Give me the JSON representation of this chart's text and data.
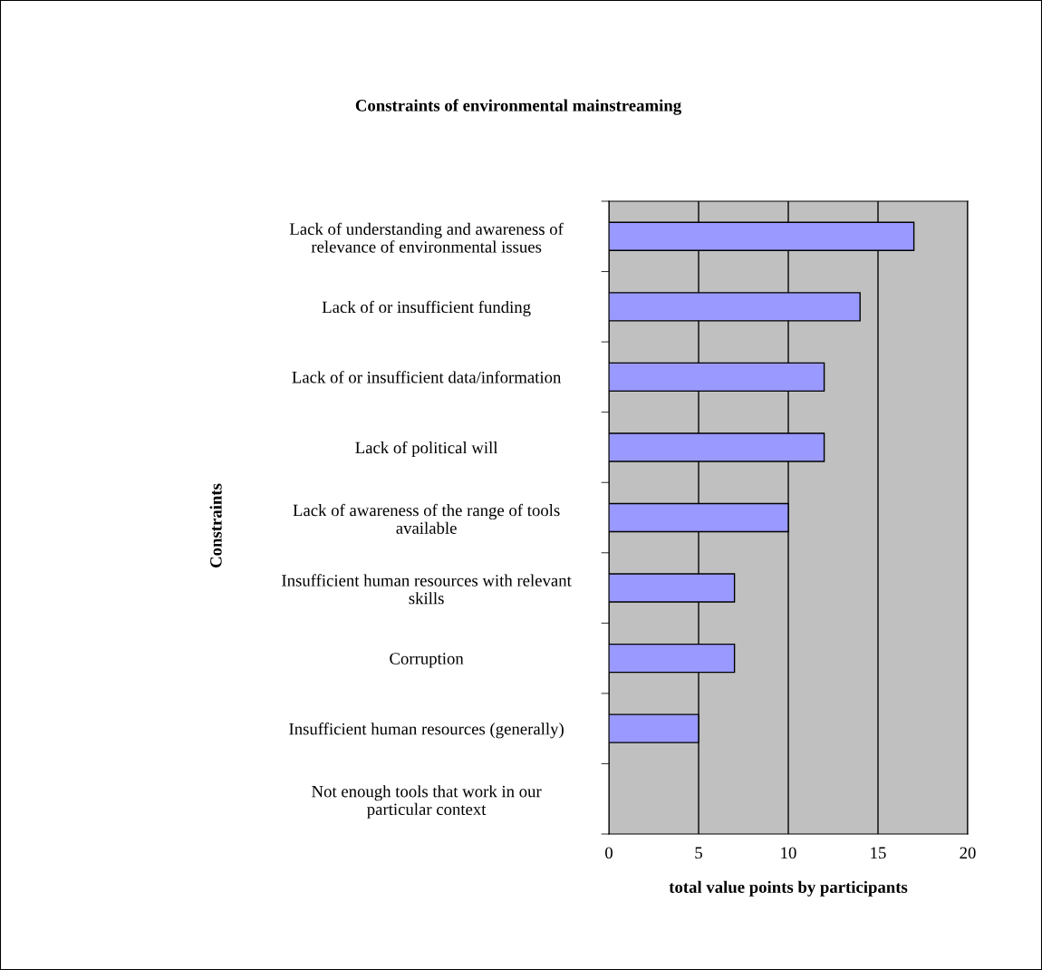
{
  "chart_data": {
    "type": "bar",
    "orientation": "horizontal",
    "title": "Constraints of environmental mainstreaming",
    "xlabel": "total value points by participants",
    "ylabel": "Constraints",
    "categories": [
      "Lack of understanding and awareness of\nrelevance of environmental issues",
      "Lack of or insufficient funding",
      "Lack of or insufficient data/information",
      "Lack of political will",
      "Lack of awareness of the range of tools\navailable",
      "Insufficient human resources with relevant\nskills",
      "Corruption",
      "Insufficient human resources (generally)",
      "Not enough tools that work in our\nparticular context"
    ],
    "values": [
      17,
      14,
      12,
      12,
      10,
      7,
      7,
      5,
      null
    ],
    "color": "#9999ff",
    "xlim": [
      0,
      20
    ],
    "xticks": [
      0,
      5,
      10,
      15,
      20
    ],
    "grid": "x",
    "legend": false
  }
}
